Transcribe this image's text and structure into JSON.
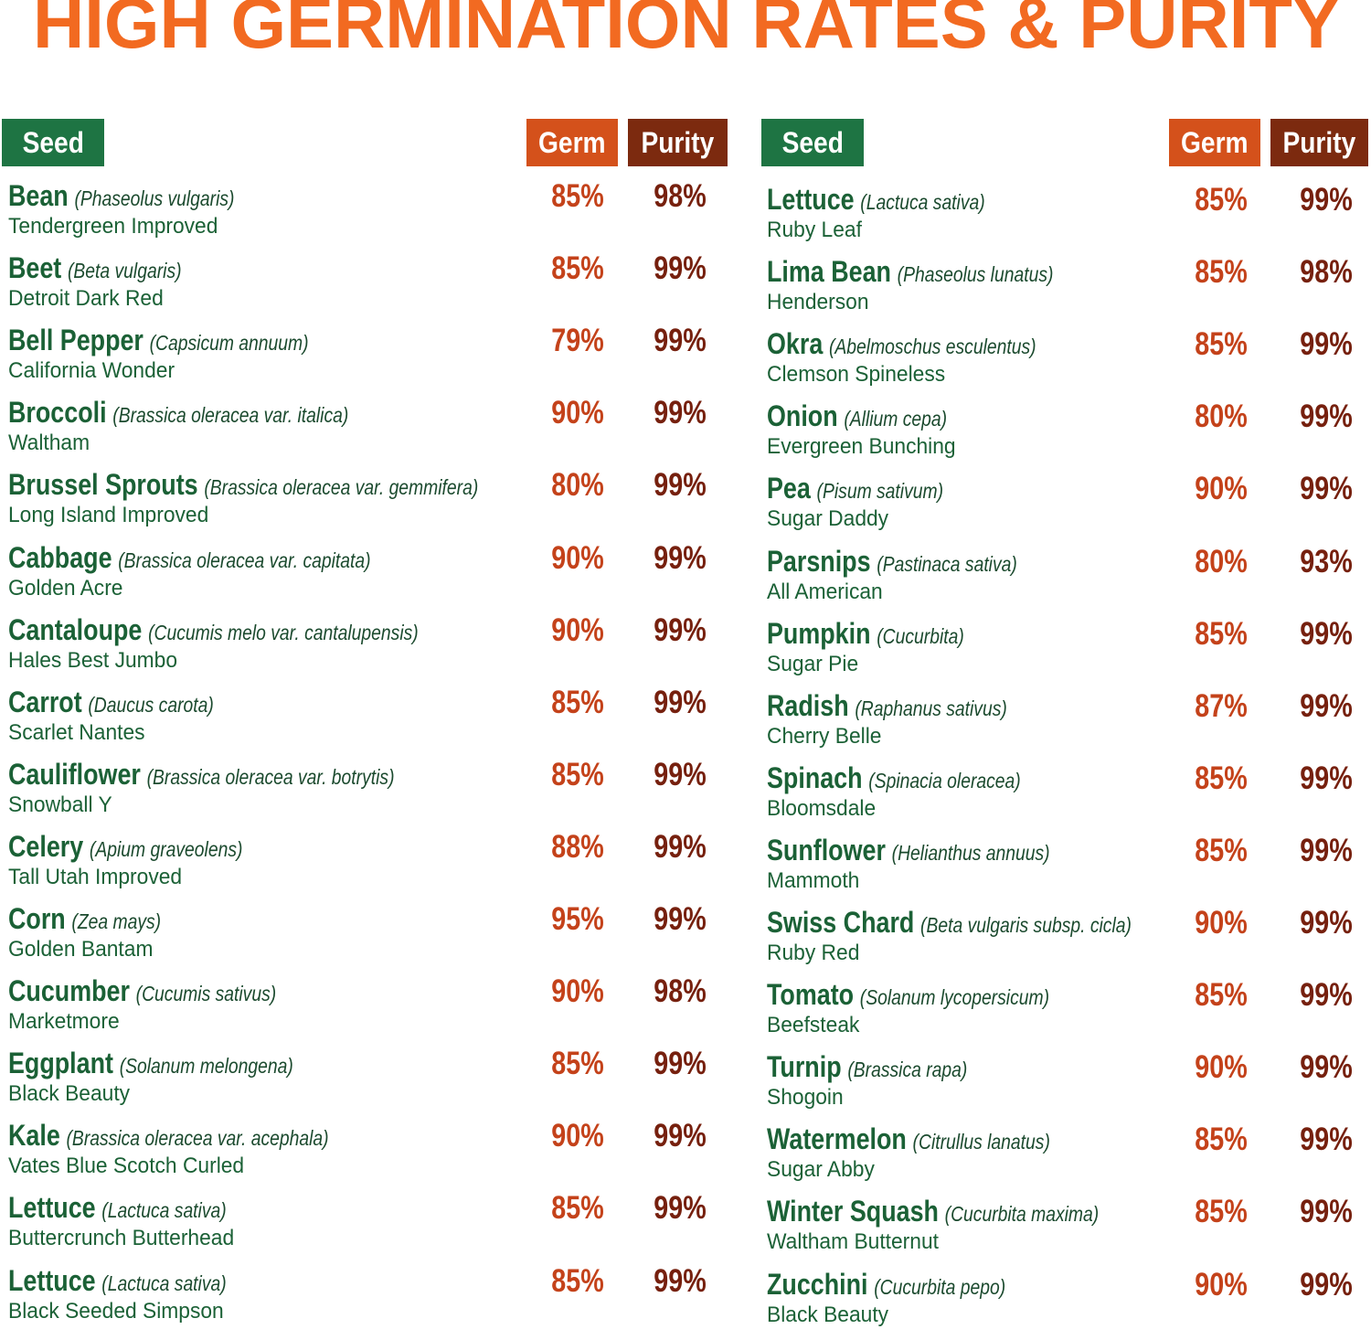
{
  "title": "HIGH GERMINATION RATES & PURITY",
  "columns": [
    {
      "headers": {
        "seed": "Seed",
        "germ": "Germ",
        "purity": "Purity"
      },
      "rows": [
        {
          "name": "Bean",
          "scientific": "(Phaseolus vulgaris)",
          "variety": "Tendergreen Improved",
          "germ": "85%",
          "purity": "98%"
        },
        {
          "name": "Beet",
          "scientific": "(Beta vulgaris)",
          "variety": "Detroit Dark Red",
          "germ": "85%",
          "purity": "99%"
        },
        {
          "name": "Bell Pepper",
          "scientific": "(Capsicum annuum)",
          "variety": "California Wonder",
          "germ": "79%",
          "purity": "99%"
        },
        {
          "name": "Broccoli",
          "scientific": "(Brassica oleracea var. italica)",
          "variety": "Waltham",
          "germ": "90%",
          "purity": "99%"
        },
        {
          "name": "Brussel Sprouts",
          "scientific": "(Brassica oleracea var. gemmifera)",
          "variety": "Long Island Improved",
          "germ": "80%",
          "purity": "99%"
        },
        {
          "name": "Cabbage",
          "scientific": "(Brassica oleracea var. capitata)",
          "variety": "Golden Acre",
          "germ": "90%",
          "purity": "99%"
        },
        {
          "name": "Cantaloupe",
          "scientific": "(Cucumis melo var. cantalupensis)",
          "variety": "Hales Best Jumbo",
          "germ": "90%",
          "purity": "99%"
        },
        {
          "name": "Carrot",
          "scientific": "(Daucus carota)",
          "variety": "Scarlet Nantes",
          "germ": "85%",
          "purity": "99%"
        },
        {
          "name": "Cauliflower",
          "scientific": "(Brassica oleracea var. botrytis)",
          "variety": "Snowball Y",
          "germ": "85%",
          "purity": "99%"
        },
        {
          "name": "Celery",
          "scientific": "(Apium graveolens)",
          "variety": "Tall Utah Improved",
          "germ": "88%",
          "purity": "99%"
        },
        {
          "name": "Corn",
          "scientific": "(Zea mays)",
          "variety": "Golden Bantam",
          "germ": "95%",
          "purity": "99%"
        },
        {
          "name": "Cucumber",
          "scientific": "(Cucumis sativus)",
          "variety": "Marketmore",
          "germ": "90%",
          "purity": "98%"
        },
        {
          "name": "Eggplant",
          "scientific": "(Solanum melongena)",
          "variety": "Black Beauty",
          "germ": "85%",
          "purity": "99%"
        },
        {
          "name": "Kale",
          "scientific": "(Brassica oleracea var. acephala)",
          "variety": "Vates Blue Scotch Curled",
          "germ": "90%",
          "purity": "99%"
        },
        {
          "name": "Lettuce",
          "scientific": "(Lactuca sativa)",
          "variety": "Buttercrunch Butterhead",
          "germ": "85%",
          "purity": "99%"
        },
        {
          "name": "Lettuce",
          "scientific": "(Lactuca sativa)",
          "variety": "Black Seeded Simpson",
          "germ": "85%",
          "purity": "99%"
        }
      ]
    },
    {
      "headers": {
        "seed": "Seed",
        "germ": "Germ",
        "purity": "Purity"
      },
      "rows": [
        {
          "name": "Lettuce",
          "scientific": "(Lactuca sativa)",
          "variety": "Ruby Leaf",
          "germ": "85%",
          "purity": "99%"
        },
        {
          "name": "Lima Bean",
          "scientific": "(Phaseolus lunatus)",
          "variety": "Henderson",
          "germ": "85%",
          "purity": "98%"
        },
        {
          "name": "Okra",
          "scientific": "(Abelmoschus esculentus)",
          "variety": "Clemson Spineless",
          "germ": "85%",
          "purity": "99%"
        },
        {
          "name": "Onion",
          "scientific": "(Allium cepa)",
          "variety": "Evergreen Bunching",
          "germ": "80%",
          "purity": "99%"
        },
        {
          "name": "Pea",
          "scientific": "(Pisum sativum)",
          "variety": "Sugar Daddy",
          "germ": "90%",
          "purity": "99%"
        },
        {
          "name": "Parsnips",
          "scientific": "(Pastinaca sativa)",
          "variety": "All American",
          "germ": "80%",
          "purity": "93%"
        },
        {
          "name": "Pumpkin",
          "scientific": "(Cucurbita)",
          "variety": "Sugar Pie",
          "germ": "85%",
          "purity": "99%"
        },
        {
          "name": "Radish",
          "scientific": "(Raphanus sativus)",
          "variety": "Cherry Belle",
          "germ": "87%",
          "purity": "99%"
        },
        {
          "name": "Spinach",
          "scientific": "(Spinacia oleracea)",
          "variety": "Bloomsdale",
          "germ": "85%",
          "purity": "99%"
        },
        {
          "name": "Sunflower",
          "scientific": "(Helianthus annuus)",
          "variety": "Mammoth",
          "germ": "85%",
          "purity": "99%"
        },
        {
          "name": "Swiss Chard",
          "scientific": "(Beta vulgaris subsp. cicla)",
          "variety": "Ruby Red",
          "germ": "90%",
          "purity": "99%"
        },
        {
          "name": "Tomato",
          "scientific": "(Solanum lycopersicum)",
          "variety": "Beefsteak",
          "germ": "85%",
          "purity": "99%"
        },
        {
          "name": "Turnip",
          "scientific": "(Brassica rapa)",
          "variety": "Shogoin",
          "germ": "90%",
          "purity": "99%"
        },
        {
          "name": "Watermelon",
          "scientific": "(Citrullus lanatus)",
          "variety": "Sugar Abby",
          "germ": "85%",
          "purity": "99%"
        },
        {
          "name": "Winter Squash",
          "scientific": "(Cucurbita maxima)",
          "variety": "Waltham Butternut",
          "germ": "85%",
          "purity": "99%"
        },
        {
          "name": "Zucchini",
          "scientific": "(Cucurbita pepo)",
          "variety": "Black Beauty",
          "germ": "90%",
          "purity": "99%"
        }
      ]
    }
  ]
}
